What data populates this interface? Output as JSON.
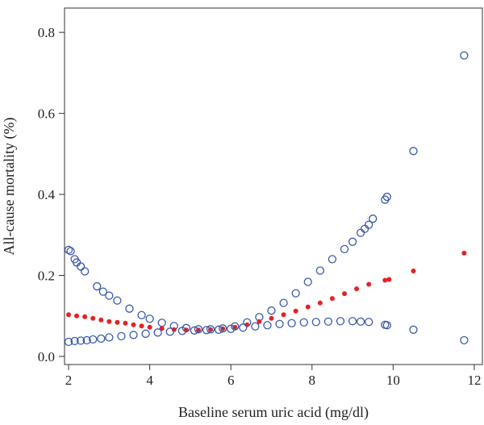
{
  "chart_data": {
    "type": "scatter",
    "title": "",
    "xlabel": "Baseline serum uric acid (mg/dl)",
    "ylabel": "All-cause mortality (%)",
    "xlim": [
      1.9,
      12.2
    ],
    "ylim": [
      -0.02,
      0.86
    ],
    "xticks": [
      2,
      4,
      6,
      8,
      10,
      12
    ],
    "yticks": [
      0.0,
      0.2,
      0.4,
      0.6,
      0.8
    ],
    "xtick_labels": [
      "2",
      "4",
      "6",
      "8",
      "10",
      "12"
    ],
    "ytick_labels": [
      "0.0",
      "0.2",
      "0.4",
      "0.6",
      "0.8"
    ],
    "grid": false,
    "legend": "none",
    "series": [
      {
        "role": "upper-bound",
        "marker": "open-circle",
        "color": "#3a5aa8",
        "points": [
          [
            2.0,
            0.263
          ],
          [
            2.05,
            0.26
          ],
          [
            2.15,
            0.24
          ],
          [
            2.2,
            0.232
          ],
          [
            2.3,
            0.222
          ],
          [
            2.4,
            0.21
          ],
          [
            2.7,
            0.173
          ],
          [
            2.85,
            0.16
          ],
          [
            3.0,
            0.15
          ],
          [
            3.2,
            0.138
          ],
          [
            3.5,
            0.118
          ],
          [
            3.8,
            0.102
          ],
          [
            4.0,
            0.093
          ],
          [
            4.3,
            0.083
          ],
          [
            4.6,
            0.075
          ],
          [
            4.9,
            0.07
          ],
          [
            5.2,
            0.067
          ],
          [
            5.5,
            0.067
          ],
          [
            5.8,
            0.069
          ],
          [
            6.1,
            0.074
          ],
          [
            6.4,
            0.084
          ],
          [
            6.7,
            0.097
          ],
          [
            7.0,
            0.113
          ],
          [
            7.3,
            0.132
          ],
          [
            7.6,
            0.156
          ],
          [
            7.9,
            0.184
          ],
          [
            8.2,
            0.212
          ],
          [
            8.5,
            0.24
          ],
          [
            8.8,
            0.265
          ],
          [
            9.0,
            0.283
          ],
          [
            9.2,
            0.305
          ],
          [
            9.3,
            0.315
          ],
          [
            9.4,
            0.325
          ],
          [
            9.5,
            0.34
          ],
          [
            9.8,
            0.387
          ],
          [
            9.85,
            0.394
          ],
          [
            10.5,
            0.507
          ],
          [
            11.75,
            0.743
          ]
        ]
      },
      {
        "role": "estimate",
        "marker": "filled-circle",
        "color": "#e32226",
        "points": [
          [
            2.0,
            0.103
          ],
          [
            2.2,
            0.1
          ],
          [
            2.4,
            0.098
          ],
          [
            2.6,
            0.094
          ],
          [
            2.8,
            0.09
          ],
          [
            3.0,
            0.086
          ],
          [
            3.2,
            0.084
          ],
          [
            3.4,
            0.082
          ],
          [
            3.6,
            0.078
          ],
          [
            3.8,
            0.075
          ],
          [
            4.0,
            0.072
          ],
          [
            4.3,
            0.069
          ],
          [
            4.6,
            0.066
          ],
          [
            4.9,
            0.065
          ],
          [
            5.2,
            0.065
          ],
          [
            5.5,
            0.066
          ],
          [
            5.8,
            0.068
          ],
          [
            6.1,
            0.072
          ],
          [
            6.4,
            0.078
          ],
          [
            6.7,
            0.086
          ],
          [
            7.0,
            0.094
          ],
          [
            7.3,
            0.103
          ],
          [
            7.6,
            0.112
          ],
          [
            7.9,
            0.122
          ],
          [
            8.2,
            0.132
          ],
          [
            8.5,
            0.143
          ],
          [
            8.8,
            0.155
          ],
          [
            9.1,
            0.167
          ],
          [
            9.4,
            0.178
          ],
          [
            9.8,
            0.188
          ],
          [
            9.9,
            0.19
          ],
          [
            10.5,
            0.211
          ],
          [
            11.75,
            0.255
          ]
        ]
      },
      {
        "role": "lower-bound",
        "marker": "open-circle",
        "color": "#3a5aa8",
        "points": [
          [
            2.0,
            0.036
          ],
          [
            2.15,
            0.038
          ],
          [
            2.3,
            0.039
          ],
          [
            2.45,
            0.04
          ],
          [
            2.6,
            0.042
          ],
          [
            2.8,
            0.044
          ],
          [
            3.0,
            0.047
          ],
          [
            3.3,
            0.05
          ],
          [
            3.6,
            0.053
          ],
          [
            3.9,
            0.056
          ],
          [
            4.2,
            0.059
          ],
          [
            4.5,
            0.061
          ],
          [
            4.8,
            0.063
          ],
          [
            5.1,
            0.064
          ],
          [
            5.4,
            0.065
          ],
          [
            5.7,
            0.066
          ],
          [
            6.0,
            0.068
          ],
          [
            6.3,
            0.071
          ],
          [
            6.6,
            0.074
          ],
          [
            6.9,
            0.077
          ],
          [
            7.2,
            0.08
          ],
          [
            7.5,
            0.082
          ],
          [
            7.8,
            0.084
          ],
          [
            8.1,
            0.085
          ],
          [
            8.4,
            0.086
          ],
          [
            8.7,
            0.087
          ],
          [
            9.0,
            0.087
          ],
          [
            9.2,
            0.086
          ],
          [
            9.4,
            0.085
          ],
          [
            9.8,
            0.078
          ],
          [
            9.85,
            0.077
          ],
          [
            10.5,
            0.066
          ],
          [
            11.75,
            0.04
          ]
        ]
      }
    ]
  }
}
